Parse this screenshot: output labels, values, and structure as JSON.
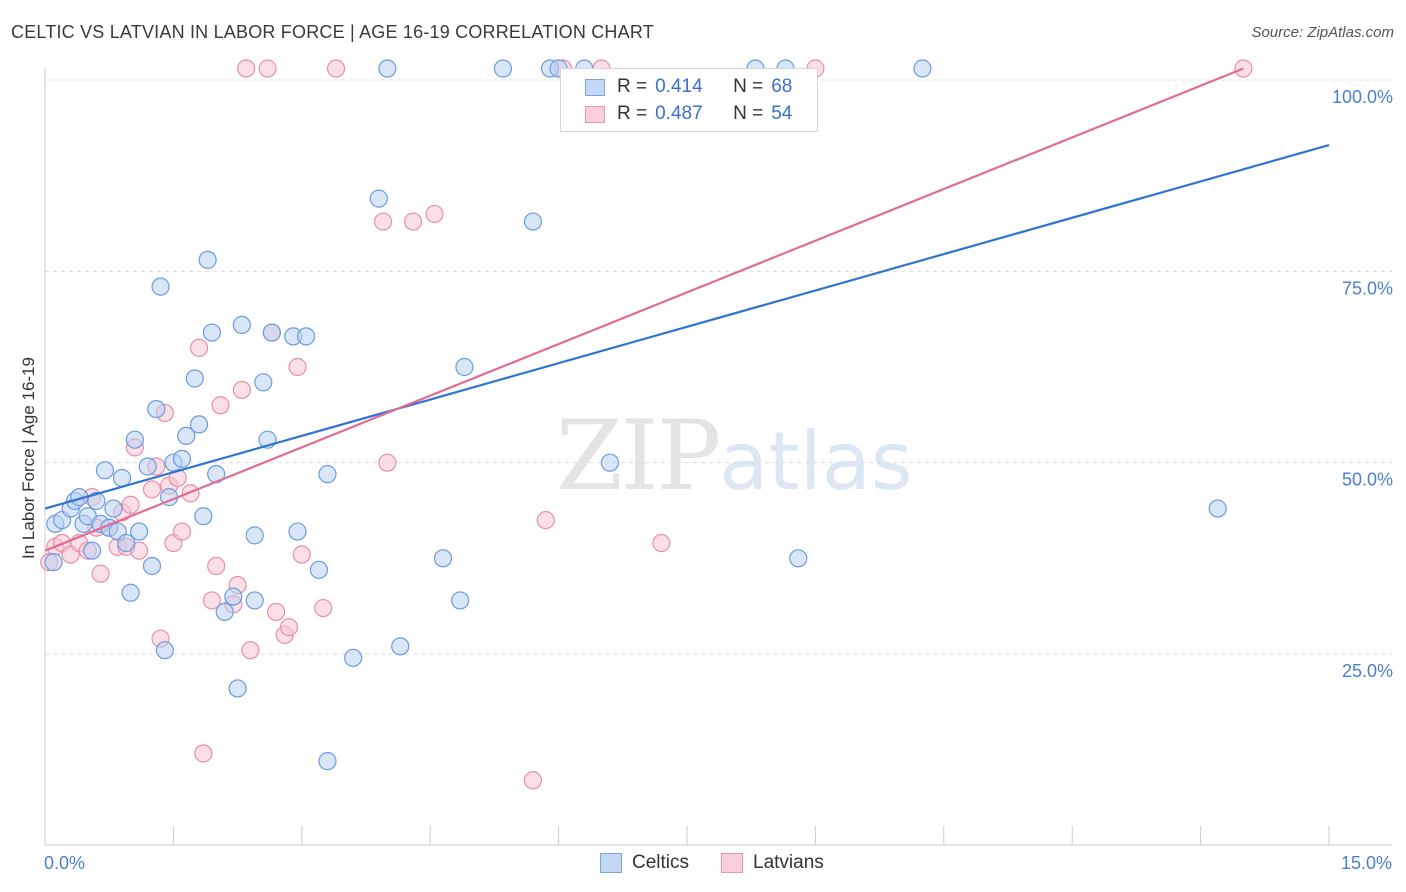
{
  "header": {
    "title": "CELTIC VS LATVIAN IN LABOR FORCE | AGE 16-19 CORRELATION CHART",
    "source": "Source: ZipAtlas.com"
  },
  "watermark": {
    "zip": "ZIP",
    "atlas": "atlas"
  },
  "legend": {
    "rows": [
      {
        "r_label": "R =",
        "r_value": "0.414",
        "n_label": "N =",
        "n_value": "68"
      },
      {
        "r_label": "R =",
        "r_value": "0.487",
        "n_label": "N =",
        "n_value": "54"
      }
    ]
  },
  "colors": {
    "celtics_fill": "#b9d2f2",
    "celtics_stroke": "#6b9be0",
    "celtics_line": "#2f74d0",
    "latvians_fill": "#f7c4d3",
    "latvians_stroke": "#e78fab",
    "latvians_line": "#e06c94",
    "grid": "#dcdcdc",
    "axis": "#cccccc"
  },
  "chart_data": {
    "type": "scatter",
    "title": "CELTIC VS LATVIAN IN LABOR FORCE | AGE 16-19 CORRELATION CHART",
    "xlabel": "",
    "ylabel": "In Labor Force | Age 16-19",
    "xlim": [
      0,
      15
    ],
    "ylim": [
      0,
      104
    ],
    "x_tick_labels": [
      {
        "value": 0,
        "label": "0.0%"
      },
      {
        "value": 15,
        "label": "15.0%"
      }
    ],
    "y_tick_labels": [
      {
        "value": 25,
        "label": "25.0%"
      },
      {
        "value": 50,
        "label": "50.0%"
      },
      {
        "value": 75,
        "label": "75.0%"
      },
      {
        "value": 100,
        "label": "100.0%"
      }
    ],
    "grid": true,
    "legend_position": "top-center",
    "series": [
      {
        "name": "Celtics",
        "trend": {
          "x": [
            0,
            15
          ],
          "y": [
            44.0,
            91.5
          ]
        },
        "points": [
          [
            0.1,
            37.0
          ],
          [
            0.12,
            42.0
          ],
          [
            0.2,
            42.5
          ],
          [
            0.3,
            44.0
          ],
          [
            0.35,
            45.0
          ],
          [
            0.4,
            45.5
          ],
          [
            0.45,
            42.0
          ],
          [
            0.5,
            43.0
          ],
          [
            0.55,
            38.5
          ],
          [
            0.6,
            45.0
          ],
          [
            0.65,
            42.0
          ],
          [
            0.7,
            49.0
          ],
          [
            0.75,
            41.5
          ],
          [
            0.8,
            44.0
          ],
          [
            0.85,
            41.0
          ],
          [
            0.9,
            48.0
          ],
          [
            0.95,
            39.5
          ],
          [
            1.0,
            33.0
          ],
          [
            1.05,
            53.0
          ],
          [
            1.1,
            41.0
          ],
          [
            1.2,
            49.5
          ],
          [
            1.25,
            36.5
          ],
          [
            1.3,
            57.0
          ],
          [
            1.35,
            73.0
          ],
          [
            1.4,
            25.5
          ],
          [
            1.45,
            45.5
          ],
          [
            1.5,
            50.0
          ],
          [
            1.6,
            50.5
          ],
          [
            1.65,
            53.5
          ],
          [
            1.75,
            61.0
          ],
          [
            1.8,
            55.0
          ],
          [
            1.85,
            43.0
          ],
          [
            1.9,
            76.5
          ],
          [
            1.95,
            67.0
          ],
          [
            2.0,
            48.5
          ],
          [
            2.1,
            30.5
          ],
          [
            2.2,
            32.5
          ],
          [
            2.25,
            20.5
          ],
          [
            2.3,
            68.0
          ],
          [
            2.45,
            32.0
          ],
          [
            2.45,
            40.5
          ],
          [
            2.55,
            60.5
          ],
          [
            2.6,
            53.0
          ],
          [
            2.65,
            67.0
          ],
          [
            2.9,
            66.5
          ],
          [
            2.95,
            41.0
          ],
          [
            3.05,
            66.5
          ],
          [
            3.2,
            36.0
          ],
          [
            3.3,
            48.5
          ],
          [
            3.3,
            11.0
          ],
          [
            3.6,
            24.5
          ],
          [
            3.9,
            84.5
          ],
          [
            4.0,
            101.5
          ],
          [
            4.15,
            26.0
          ],
          [
            4.65,
            37.5
          ],
          [
            4.85,
            32.0
          ],
          [
            4.9,
            62.5
          ],
          [
            5.35,
            101.5
          ],
          [
            5.7,
            81.5
          ],
          [
            5.9,
            101.5
          ],
          [
            6.0,
            101.5
          ],
          [
            6.3,
            101.5
          ],
          [
            6.6,
            50.0
          ],
          [
            8.3,
            101.5
          ],
          [
            8.65,
            101.5
          ],
          [
            8.8,
            37.5
          ],
          [
            10.25,
            101.5
          ],
          [
            13.7,
            44.0
          ]
        ]
      },
      {
        "name": "Latvians",
        "trend": {
          "x": [
            0,
            14.0
          ],
          "y": [
            38.5,
            101.5
          ]
        },
        "points": [
          [
            0.05,
            37.0
          ],
          [
            0.12,
            39.0
          ],
          [
            0.2,
            39.5
          ],
          [
            0.3,
            38.0
          ],
          [
            0.4,
            39.5
          ],
          [
            0.5,
            38.5
          ],
          [
            0.55,
            45.5
          ],
          [
            0.6,
            41.5
          ],
          [
            0.65,
            35.5
          ],
          [
            0.75,
            41.5
          ],
          [
            0.85,
            39.0
          ],
          [
            0.9,
            43.5
          ],
          [
            0.95,
            39.0
          ],
          [
            1.0,
            44.5
          ],
          [
            1.05,
            52.0
          ],
          [
            1.1,
            38.5
          ],
          [
            1.25,
            46.5
          ],
          [
            1.3,
            49.5
          ],
          [
            1.35,
            27.0
          ],
          [
            1.4,
            56.5
          ],
          [
            1.45,
            47.0
          ],
          [
            1.5,
            39.5
          ],
          [
            1.55,
            48.0
          ],
          [
            1.6,
            41.0
          ],
          [
            1.7,
            46.0
          ],
          [
            1.8,
            65.0
          ],
          [
            1.85,
            12.0
          ],
          [
            1.95,
            32.0
          ],
          [
            2.0,
            36.5
          ],
          [
            2.05,
            57.5
          ],
          [
            2.2,
            31.5
          ],
          [
            2.25,
            34.0
          ],
          [
            2.3,
            59.5
          ],
          [
            2.35,
            101.5
          ],
          [
            2.4,
            25.5
          ],
          [
            2.6,
            101.5
          ],
          [
            2.65,
            67.0
          ],
          [
            2.7,
            30.5
          ],
          [
            2.8,
            27.5
          ],
          [
            2.85,
            28.5
          ],
          [
            2.95,
            62.5
          ],
          [
            3.0,
            38.0
          ],
          [
            3.25,
            31.0
          ],
          [
            3.4,
            101.5
          ],
          [
            3.95,
            81.5
          ],
          [
            4.0,
            50.0
          ],
          [
            4.3,
            81.5
          ],
          [
            4.55,
            82.5
          ],
          [
            5.7,
            8.5
          ],
          [
            5.85,
            42.5
          ],
          [
            6.05,
            101.5
          ],
          [
            6.5,
            101.5
          ],
          [
            7.2,
            39.5
          ],
          [
            9.0,
            101.5
          ],
          [
            14.0,
            101.5
          ]
        ]
      }
    ]
  },
  "bottom_legend": {
    "items": [
      "Celtics",
      "Latvians"
    ]
  }
}
